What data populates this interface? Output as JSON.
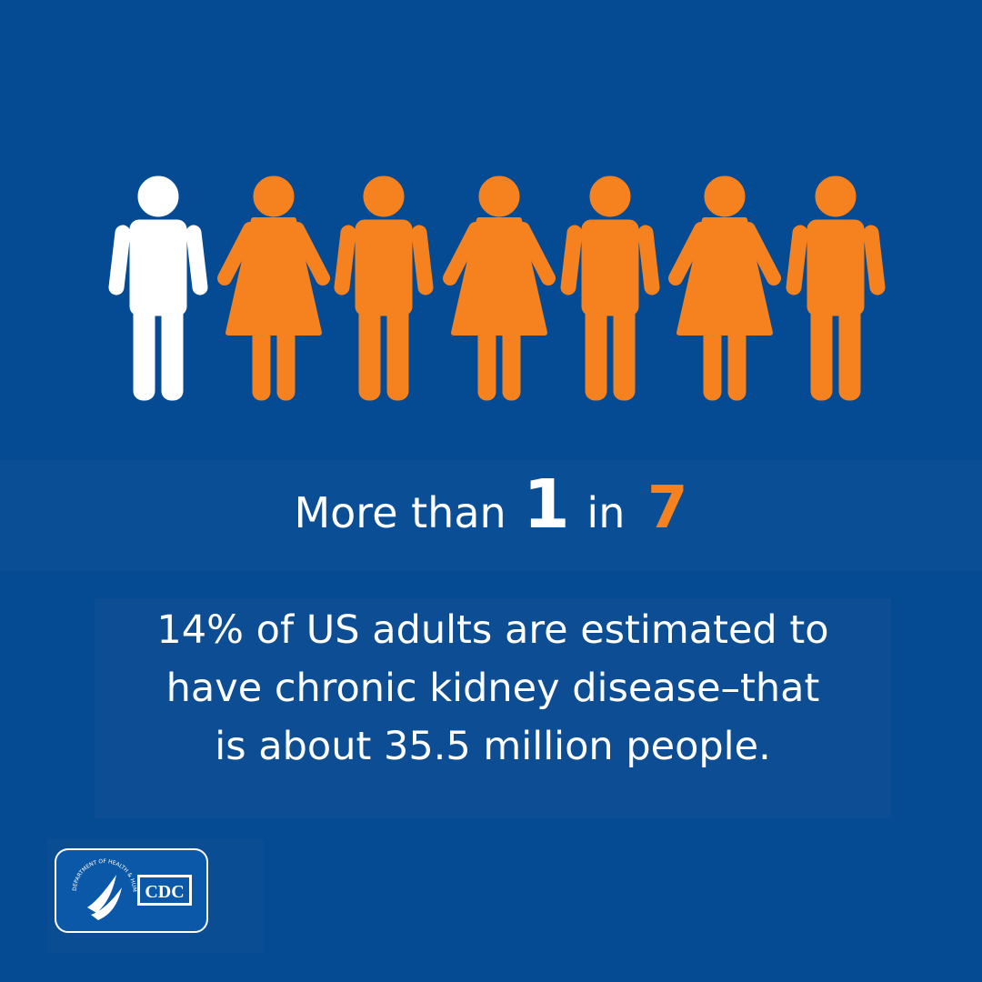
{
  "headline": {
    "prefix": "More than",
    "numerator": "1",
    "joiner": "in",
    "denominator": "7"
  },
  "statement": {
    "lines": [
      "14% of US adults are estimated to",
      "have chronic kidney disease–that",
      "is about 35.5 million people."
    ]
  },
  "logo": {
    "seal_text": "DEPARTMENT OF HEALTH & HUMAN SERVICES USA",
    "agency": "CDC"
  }
}
